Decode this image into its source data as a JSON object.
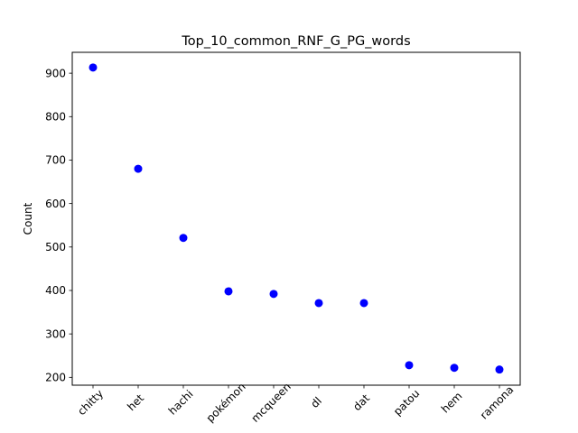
{
  "chart_data": {
    "type": "scatter",
    "title": "Top_10_common_RNF_G_PG_words",
    "xlabel": "",
    "ylabel": "Count",
    "categories": [
      "chitty",
      "het",
      "hachi",
      "pokémon",
      "mcqueen",
      "dl",
      "dat",
      "patou",
      "hem",
      "ramona"
    ],
    "values": [
      913,
      680,
      521,
      398,
      392,
      371,
      371,
      228,
      222,
      218
    ],
    "ylim": [
      182,
      948
    ],
    "yticks": [
      200,
      300,
      400,
      500,
      600,
      700,
      800,
      900
    ],
    "x_tick_rotation": 45,
    "grid": false,
    "legend": "none",
    "marker_color": "#0000ff"
  }
}
